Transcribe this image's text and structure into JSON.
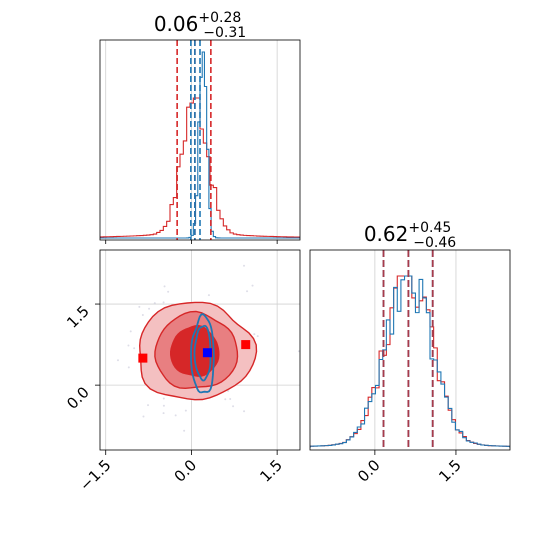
{
  "chart_data": {
    "type": "corner",
    "colors": {
      "red": "#d62728",
      "blue": "#1f77b4",
      "marker_red": "#ff0000",
      "marker_blue": "#0000ff",
      "grid": "#d0d0d0"
    },
    "grid": true,
    "params": [
      {
        "title": {
          "main": "0.06",
          "sup": "+0.28",
          "sub": "−0.31"
        },
        "range": [
          -1.6,
          1.9
        ],
        "blue_quantiles": [
          -0.01,
          0.06,
          0.15
        ],
        "red_quantiles": [
          -0.25,
          0.06,
          0.34
        ]
      },
      {
        "title": {
          "main": "0.62",
          "sup": "+0.45",
          "sub": "−0.46"
        },
        "range": [
          -1.2,
          2.5
        ],
        "blue_quantiles": [
          0.16,
          0.62,
          1.07
        ],
        "red_quantiles": [
          0.16,
          0.62,
          1.07
        ]
      }
    ],
    "scatter_xticks": [
      "−1.5",
      "0.0",
      "1.5"
    ],
    "scatter_yticks": [
      "0.0",
      "1.5"
    ],
    "marg2_xticks": [
      "0.0",
      "1.5"
    ],
    "markers": [
      {
        "color": "red",
        "x": -0.85,
        "y": 0.5
      },
      {
        "color": "red",
        "x": 0.95,
        "y": 0.75
      },
      {
        "color": "blue",
        "x": 0.28,
        "y": 0.6
      }
    ]
  }
}
